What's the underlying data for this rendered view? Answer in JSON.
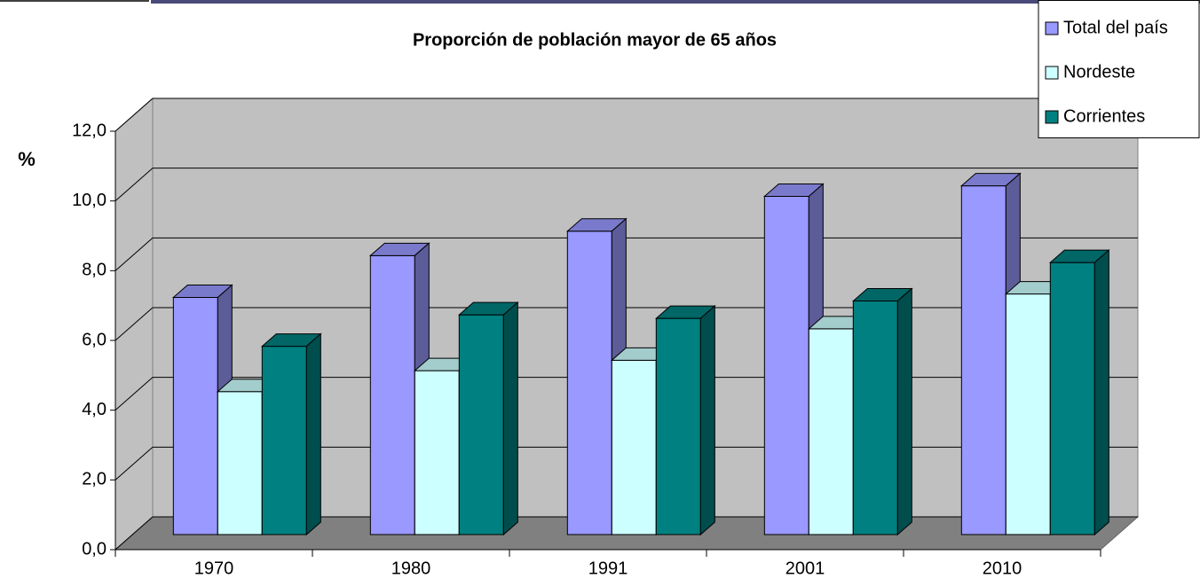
{
  "chart_data": {
    "type": "bar3d",
    "title": "Proporción de población mayor de 65 años",
    "y_label": "%",
    "categories": [
      "1970",
      "1980",
      "1991",
      "2001",
      "2010"
    ],
    "series": [
      {
        "name": "Total del país",
        "color": "#9999ff",
        "values": [
          6.8,
          8.0,
          8.7,
          9.7,
          10.0
        ]
      },
      {
        "name": "Nordeste",
        "color": "#ccffff",
        "values": [
          4.1,
          4.7,
          5.0,
          5.9,
          6.9
        ]
      },
      {
        "name": "Corrientes",
        "color": "#008080",
        "values": [
          5.4,
          6.3,
          6.2,
          6.7,
          7.8
        ]
      }
    ],
    "ylim": [
      0,
      12
    ],
    "yticks": [
      {
        "value": 0,
        "label": "0,0"
      },
      {
        "value": 2,
        "label": "2,0"
      },
      {
        "value": 4,
        "label": "4,0"
      },
      {
        "value": 6,
        "label": "6,0"
      },
      {
        "value": 8,
        "label": "8,0"
      },
      {
        "value": 10,
        "label": "10,0"
      },
      {
        "value": 12,
        "label": "12,0"
      }
    ],
    "grid": true,
    "legend": "top-right"
  }
}
